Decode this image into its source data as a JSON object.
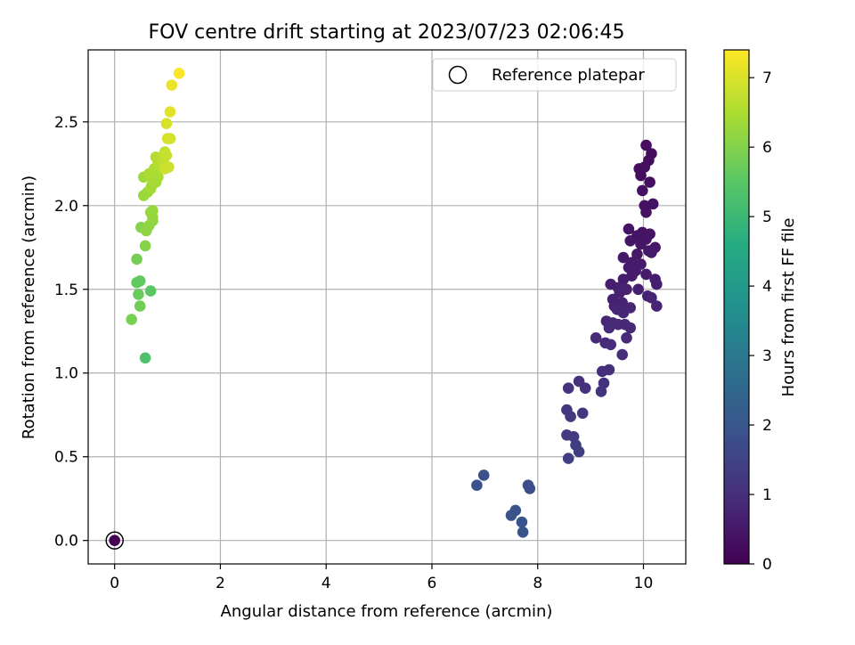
{
  "chart_data": {
    "type": "scatter",
    "title": "FOV centre drift starting at 2023/07/23 02:06:45",
    "xlabel": "Angular distance from reference (arcmin)",
    "ylabel": "Rotation from reference (arcmin)",
    "xlim": [
      -0.5,
      10.8
    ],
    "ylim": [
      -0.14,
      2.93
    ],
    "xticks": [
      0,
      2,
      4,
      6,
      8,
      10
    ],
    "xtick_labels": [
      "0",
      "2",
      "4",
      "6",
      "8",
      "10"
    ],
    "yticks": [
      0.0,
      0.5,
      1.0,
      1.5,
      2.0,
      2.5
    ],
    "ytick_labels": [
      "0.0",
      "0.5",
      "1.0",
      "1.5",
      "2.0",
      "2.5"
    ],
    "grid": true,
    "legend": {
      "placement": "top-right",
      "entries": [
        "Reference platepar"
      ]
    },
    "colorbar": {
      "label": "Hours from first FF file",
      "range": [
        0,
        7.4
      ],
      "ticks": [
        0,
        1,
        2,
        3,
        4,
        5,
        6,
        7
      ],
      "tick_labels": [
        "0",
        "1",
        "2",
        "3",
        "4",
        "5",
        "6",
        "7"
      ],
      "colormap": "viridis"
    },
    "reference_point": {
      "x": 0,
      "y": 0,
      "hours": 0
    },
    "series": [
      {
        "fields": [
          "x",
          "y",
          "hours"
        ],
        "points": [
          [
            10.05,
            2.36,
            0.25
          ],
          [
            10.15,
            2.31,
            0.25
          ],
          [
            10.1,
            2.27,
            0.25
          ],
          [
            10.02,
            2.23,
            0.3
          ],
          [
            9.92,
            2.22,
            0.3
          ],
          [
            9.95,
            2.18,
            0.3
          ],
          [
            10.12,
            2.14,
            0.3
          ],
          [
            9.98,
            2.09,
            0.35
          ],
          [
            10.18,
            2.01,
            0.35
          ],
          [
            10.02,
            2.0,
            0.35
          ],
          [
            10.05,
            1.96,
            0.35
          ],
          [
            9.72,
            1.86,
            0.4
          ],
          [
            9.98,
            1.84,
            0.4
          ],
          [
            10.12,
            1.83,
            0.4
          ],
          [
            9.88,
            1.82,
            0.4
          ],
          [
            10.05,
            1.8,
            0.45
          ],
          [
            9.75,
            1.79,
            0.45
          ],
          [
            9.95,
            1.77,
            0.45
          ],
          [
            10.22,
            1.75,
            0.45
          ],
          [
            10.1,
            1.73,
            0.5
          ],
          [
            9.88,
            1.71,
            0.5
          ],
          [
            10.15,
            1.72,
            0.5
          ],
          [
            9.62,
            1.69,
            0.5
          ],
          [
            9.78,
            1.66,
            0.55
          ],
          [
            9.95,
            1.65,
            0.55
          ],
          [
            9.72,
            1.63,
            0.55
          ],
          [
            9.85,
            1.61,
            0.55
          ],
          [
            10.05,
            1.59,
            0.6
          ],
          [
            9.78,
            1.58,
            0.6
          ],
          [
            9.62,
            1.56,
            0.6
          ],
          [
            10.22,
            1.56,
            0.6
          ],
          [
            9.38,
            1.53,
            0.65
          ],
          [
            10.25,
            1.53,
            0.65
          ],
          [
            9.52,
            1.51,
            0.65
          ],
          [
            9.9,
            1.5,
            0.65
          ],
          [
            9.68,
            1.5,
            0.7
          ],
          [
            9.55,
            1.48,
            0.7
          ],
          [
            10.08,
            1.46,
            0.7
          ],
          [
            9.42,
            1.44,
            0.7
          ],
          [
            10.15,
            1.45,
            0.75
          ],
          [
            9.6,
            1.42,
            0.75
          ],
          [
            9.45,
            1.4,
            0.75
          ],
          [
            10.25,
            1.4,
            0.75
          ],
          [
            9.5,
            1.38,
            0.8
          ],
          [
            9.75,
            1.39,
            0.8
          ],
          [
            9.62,
            1.36,
            0.8
          ],
          [
            9.3,
            1.31,
            0.8
          ],
          [
            9.42,
            1.3,
            0.85
          ],
          [
            9.65,
            1.29,
            0.85
          ],
          [
            9.52,
            1.29,
            0.85
          ],
          [
            9.75,
            1.27,
            0.85
          ],
          [
            9.35,
            1.27,
            0.9
          ],
          [
            9.1,
            1.21,
            0.9
          ],
          [
            9.68,
            1.21,
            0.9
          ],
          [
            9.28,
            1.18,
            0.9
          ],
          [
            9.38,
            1.17,
            0.95
          ],
          [
            9.6,
            1.11,
            0.95
          ],
          [
            9.35,
            1.02,
            1.0
          ],
          [
            9.22,
            1.01,
            1.0
          ],
          [
            8.78,
            0.95,
            1.05
          ],
          [
            9.25,
            0.94,
            1.05
          ],
          [
            8.58,
            0.91,
            1.1
          ],
          [
            8.9,
            0.91,
            1.1
          ],
          [
            9.2,
            0.89,
            1.15
          ],
          [
            8.55,
            0.78,
            1.2
          ],
          [
            8.85,
            0.76,
            1.2
          ],
          [
            8.62,
            0.74,
            1.25
          ],
          [
            8.55,
            0.63,
            1.3
          ],
          [
            8.68,
            0.62,
            1.3
          ],
          [
            8.72,
            0.57,
            1.35
          ],
          [
            8.78,
            0.53,
            1.35
          ],
          [
            8.58,
            0.49,
            1.4
          ],
          [
            7.82,
            0.33,
            1.8
          ],
          [
            7.85,
            0.31,
            1.8
          ],
          [
            6.98,
            0.39,
            1.85
          ],
          [
            6.85,
            0.33,
            1.85
          ],
          [
            7.58,
            0.18,
            1.9
          ],
          [
            7.5,
            0.15,
            1.9
          ],
          [
            7.7,
            0.11,
            1.95
          ],
          [
            7.72,
            0.05,
            1.95
          ],
          [
            0.58,
            1.09,
            5.3
          ],
          [
            0.68,
            1.49,
            5.5
          ],
          [
            0.42,
            1.54,
            5.6
          ],
          [
            0.48,
            1.55,
            5.6
          ],
          [
            0.45,
            1.47,
            5.7
          ],
          [
            0.48,
            1.4,
            5.8
          ],
          [
            0.42,
            1.68,
            5.85
          ],
          [
            0.32,
            1.32,
            5.9
          ],
          [
            0.5,
            1.87,
            6.0
          ],
          [
            0.58,
            1.76,
            6.05
          ],
          [
            0.72,
            1.91,
            6.1
          ],
          [
            0.65,
            1.88,
            6.15
          ],
          [
            0.6,
            1.85,
            6.15
          ],
          [
            0.72,
            1.93,
            6.2
          ],
          [
            0.68,
            1.96,
            6.25
          ],
          [
            0.72,
            1.97,
            6.25
          ],
          [
            0.55,
            2.06,
            6.3
          ],
          [
            0.62,
            2.08,
            6.3
          ],
          [
            0.55,
            2.17,
            6.35
          ],
          [
            0.7,
            2.12,
            6.35
          ],
          [
            0.68,
            2.1,
            6.4
          ],
          [
            0.78,
            2.14,
            6.4
          ],
          [
            0.72,
            2.16,
            6.45
          ],
          [
            0.82,
            2.17,
            6.45
          ],
          [
            0.65,
            2.19,
            6.5
          ],
          [
            0.75,
            2.22,
            6.5
          ],
          [
            0.88,
            2.23,
            6.55
          ],
          [
            0.82,
            2.26,
            6.6
          ],
          [
            0.78,
            2.29,
            6.6
          ],
          [
            0.92,
            2.24,
            6.65
          ],
          [
            0.92,
            2.27,
            6.7
          ],
          [
            0.95,
            2.32,
            6.75
          ],
          [
            0.98,
            2.3,
            6.8
          ],
          [
            1.02,
            2.23,
            6.85
          ],
          [
            0.95,
            2.22,
            6.85
          ],
          [
            1.05,
            2.4,
            6.9
          ],
          [
            1.0,
            2.4,
            6.95
          ],
          [
            0.98,
            2.49,
            7.0
          ],
          [
            1.05,
            2.56,
            7.1
          ],
          [
            1.08,
            2.72,
            7.2
          ],
          [
            1.22,
            2.79,
            7.35
          ]
        ]
      }
    ]
  }
}
